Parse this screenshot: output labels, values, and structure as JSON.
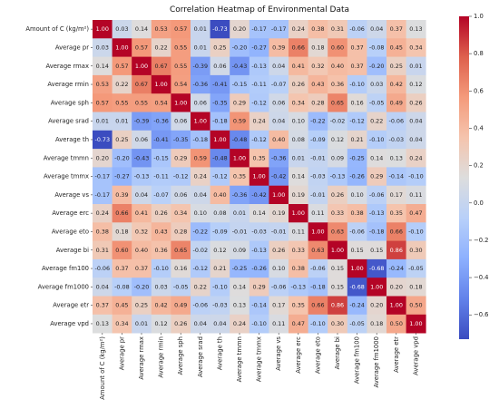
{
  "chart_data": {
    "type": "heatmap",
    "title": "Correlation Heatmap of Environmental Data",
    "labels": [
      "Amount of C (kg/m²)",
      "Average pr",
      "Average rmax",
      "Average rmin",
      "Average sph",
      "Average srad",
      "Average th",
      "Average tmmn",
      "Average tmmx",
      "Average vs",
      "Average erc",
      "Average eto",
      "Average bi",
      "Average fm100",
      "Average fm1000",
      "Average etr",
      "Average vpd"
    ],
    "values": [
      [
        1.0,
        0.03,
        0.14,
        0.53,
        0.57,
        0.01,
        -0.73,
        0.2,
        -0.17,
        -0.17,
        0.24,
        0.38,
        0.31,
        -0.06,
        0.04,
        0.37,
        0.13
      ],
      [
        0.03,
        1.0,
        0.57,
        0.22,
        0.55,
        0.01,
        0.25,
        -0.2,
        -0.27,
        0.39,
        0.66,
        0.18,
        0.6,
        0.37,
        -0.08,
        0.45,
        0.34
      ],
      [
        0.14,
        0.57,
        1.0,
        0.67,
        0.55,
        -0.39,
        0.06,
        -0.43,
        -0.13,
        0.04,
        0.41,
        0.32,
        0.4,
        0.37,
        -0.2,
        0.25,
        0.01
      ],
      [
        0.53,
        0.22,
        0.67,
        1.0,
        0.54,
        -0.36,
        -0.41,
        -0.15,
        -0.11,
        -0.07,
        0.26,
        0.43,
        0.36,
        -0.1,
        0.03,
        0.42,
        0.12
      ],
      [
        0.57,
        0.55,
        0.55,
        0.54,
        1.0,
        0.06,
        -0.35,
        0.29,
        -0.12,
        0.06,
        0.34,
        0.28,
        0.65,
        0.16,
        -0.05,
        0.49,
        0.26
      ],
      [
        0.01,
        0.01,
        -0.39,
        -0.36,
        0.06,
        1.0,
        -0.18,
        0.59,
        0.24,
        0.04,
        0.1,
        -0.22,
        -0.02,
        -0.12,
        0.22,
        -0.06,
        0.04
      ],
      [
        -0.73,
        0.25,
        0.06,
        -0.41,
        -0.35,
        -0.18,
        1.0,
        -0.48,
        -0.12,
        0.4,
        0.08,
        -0.09,
        0.12,
        0.21,
        -0.1,
        -0.03,
        0.04
      ],
      [
        0.2,
        -0.2,
        -0.43,
        -0.15,
        0.29,
        0.59,
        -0.48,
        1.0,
        0.35,
        -0.36,
        0.01,
        -0.01,
        0.09,
        -0.25,
        0.14,
        0.13,
        0.24
      ],
      [
        -0.17,
        -0.27,
        -0.13,
        -0.11,
        -0.12,
        0.24,
        -0.12,
        0.35,
        1.0,
        -0.42,
        0.14,
        -0.03,
        -0.13,
        -0.26,
        0.29,
        -0.14,
        -0.1
      ],
      [
        -0.17,
        0.39,
        0.04,
        -0.07,
        0.06,
        0.04,
        0.4,
        -0.36,
        -0.42,
        1.0,
        0.19,
        -0.01,
        0.26,
        0.1,
        -0.06,
        0.17,
        0.11
      ],
      [
        0.24,
        0.66,
        0.41,
        0.26,
        0.34,
        0.1,
        0.08,
        0.01,
        0.14,
        0.19,
        1.0,
        0.11,
        0.33,
        0.38,
        -0.13,
        0.35,
        0.47
      ],
      [
        0.38,
        0.18,
        0.32,
        0.43,
        0.28,
        -0.22,
        -0.09,
        -0.01,
        -0.03,
        -0.01,
        0.11,
        1.0,
        0.63,
        -0.06,
        -0.18,
        0.66,
        -0.1
      ],
      [
        0.31,
        0.6,
        0.4,
        0.36,
        0.65,
        -0.02,
        0.12,
        0.09,
        -0.13,
        0.26,
        0.33,
        0.63,
        1.0,
        0.15,
        0.15,
        0.86,
        0.3
      ],
      [
        -0.06,
        0.37,
        0.37,
        -0.1,
        0.16,
        -0.12,
        0.21,
        -0.25,
        -0.26,
        0.1,
        0.38,
        -0.06,
        0.15,
        1.0,
        -0.68,
        -0.24,
        -0.05
      ],
      [
        0.04,
        -0.08,
        -0.2,
        0.03,
        -0.05,
        0.22,
        -0.1,
        0.14,
        0.29,
        -0.06,
        -0.13,
        -0.18,
        0.15,
        -0.68,
        1.0,
        0.2,
        0.18
      ],
      [
        0.37,
        0.45,
        0.25,
        0.42,
        0.49,
        -0.06,
        -0.03,
        0.13,
        -0.14,
        0.17,
        0.35,
        0.66,
        0.86,
        -0.24,
        0.2,
        1.0,
        0.5
      ],
      [
        0.13,
        0.34,
        0.01,
        0.12,
        0.26,
        0.04,
        0.04,
        0.24,
        -0.1,
        0.11,
        0.47,
        -0.1,
        0.3,
        -0.05,
        0.18,
        0.5,
        1.0
      ]
    ],
    "colormap": "coolwarm",
    "vmin": -0.73,
    "vmax": 1.0,
    "colorbar_ticks": [
      1.0,
      0.8,
      0.6,
      0.4,
      0.2,
      0.0,
      -0.2,
      -0.4,
      -0.6
    ],
    "annotated": true,
    "grid": false
  }
}
